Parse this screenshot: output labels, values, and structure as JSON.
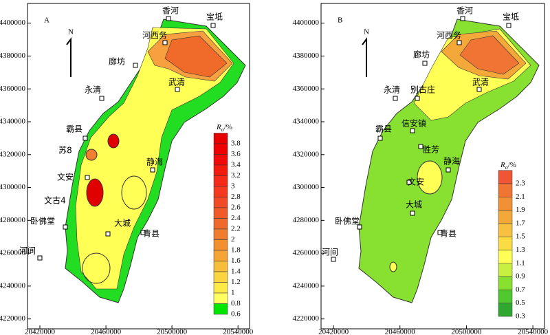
{
  "panels": [
    {
      "label": "A",
      "north": "N",
      "xlim": [
        20412500,
        20547000
      ],
      "ylim": [
        4214000,
        4412000
      ],
      "xticks": [
        20420000,
        20460000,
        20500000,
        20540000
      ],
      "yticks": [
        4220000,
        4240000,
        4260000,
        4280000,
        4300000,
        4320000,
        4340000,
        4360000,
        4380000,
        4400000
      ],
      "places": [
        "香河",
        "宝坻",
        "河西务",
        "廊坊",
        "永清",
        "武清",
        "霸县",
        "苏8",
        "文安",
        "文古4",
        "静海",
        "大城",
        "卧佛堂",
        "青县",
        "河间"
      ],
      "legend": {
        "symbol": "R",
        "subscript": "o",
        "unit": "/%",
        "values": [
          3.8,
          3.6,
          3.4,
          3.2,
          3.0,
          2.8,
          2.6,
          2.4,
          2.2,
          2.0,
          1.8,
          1.6,
          1.4,
          1.2,
          1.0,
          0.8,
          0.6
        ],
        "colors": [
          "#e60000",
          "#ee0000",
          "#f20a0a",
          "#f51a10",
          "#f52a18",
          "#f53a20",
          "#f24a25",
          "#f05a28",
          "#ef6a2a",
          "#f07d2d",
          "#f29030",
          "#f5a535",
          "#f8bd3a",
          "#fbd540",
          "#fdeb45",
          "#ffff60",
          "#00e600"
        ]
      }
    },
    {
      "label": "B",
      "north": "N",
      "xlim": [
        20412500,
        20547000
      ],
      "ylim": [
        4214000,
        4412000
      ],
      "xticks": [
        20420000,
        20460000,
        20500000,
        20540000
      ],
      "yticks": [
        4220000,
        4240000,
        4260000,
        4280000,
        4300000,
        4320000,
        4340000,
        4360000,
        4380000,
        4400000
      ],
      "places": [
        "香河",
        "宝坻",
        "河西务",
        "廊坊",
        "永清",
        "别古庄",
        "武清",
        "信安镇",
        "霸县",
        "胜芳",
        "文安",
        "静海",
        "大城",
        "卧佛堂",
        "青县",
        "河间"
      ],
      "legend": {
        "symbol": "R",
        "subscript": "o",
        "unit": "/%",
        "values": [
          2.3,
          2.1,
          1.9,
          1.7,
          1.5,
          1.3,
          1.1,
          0.9,
          0.7,
          0.5,
          0.3
        ],
        "colors": [
          "#f05535",
          "#f07535",
          "#f29035",
          "#f5a83a",
          "#f8c040",
          "#fbdc45",
          "#ffff55",
          "#c8f040",
          "#88e030",
          "#50c830",
          "#30a830"
        ]
      }
    }
  ]
}
